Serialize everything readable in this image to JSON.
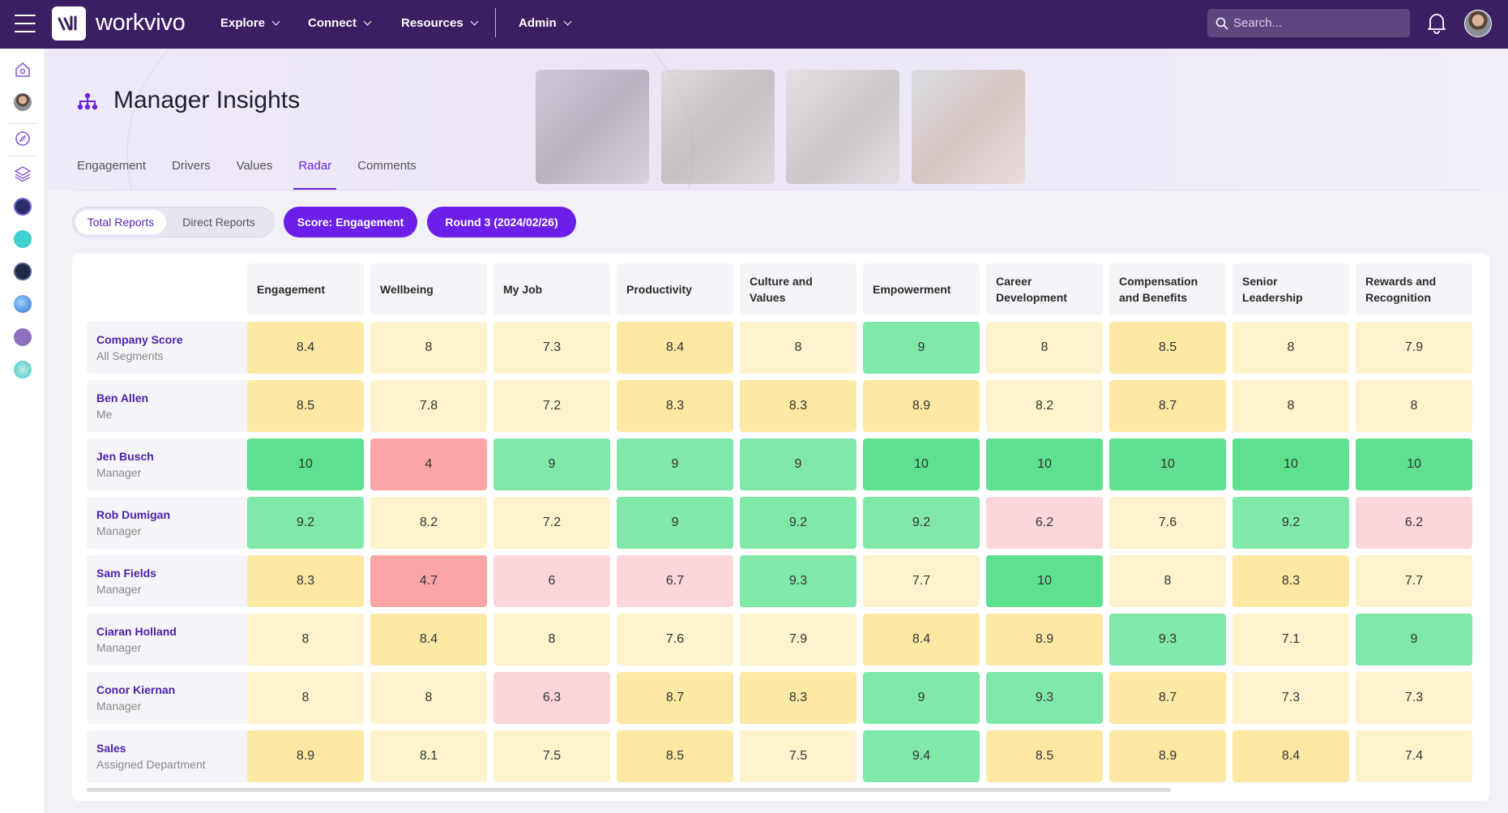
{
  "topbar": {
    "brand": "workvivo",
    "nav": [
      "Explore",
      "Connect",
      "Resources",
      "Admin"
    ],
    "search_placeholder": "Search..."
  },
  "page": {
    "title": "Manager Insights",
    "tabs": [
      "Engagement",
      "Drivers",
      "Values",
      "Radar",
      "Comments"
    ],
    "active_tab": "Radar"
  },
  "filters": {
    "total_reports": "Total Reports",
    "direct_reports": "Direct Reports",
    "score": "Score: Engagement",
    "round": "Round 3 (2024/02/26)"
  },
  "colors": {
    "green_dark": "#5ee08f",
    "green": "#80e8a8",
    "yellow": "#fde9a3",
    "cream": "#fef3cc",
    "pink_light": "#fcd6d8",
    "red": "#fba5a6"
  },
  "table": {
    "columns": [
      [
        "Engagement"
      ],
      [
        "Wellbeing"
      ],
      [
        "My Job"
      ],
      [
        "Productivity"
      ],
      [
        "Culture and",
        "Values"
      ],
      [
        "Empowerment"
      ],
      [
        "Career",
        "Development"
      ],
      [
        "Compensation",
        "and Benefits"
      ],
      [
        "Senior",
        "Leadership"
      ],
      [
        "Rewards and",
        "Recognition"
      ]
    ],
    "rows": [
      {
        "name": "Company Score",
        "role": "All Segments",
        "values": [
          "8.4",
          "8",
          "7.3",
          "8.4",
          "8",
          "9",
          "8",
          "8.5",
          "8",
          "7.9"
        ],
        "tones": [
          "yellow",
          "cream",
          "cream",
          "yellow",
          "cream",
          "green",
          "cream",
          "yellow",
          "cream",
          "cream"
        ]
      },
      {
        "name": "Ben Allen",
        "role": "Me",
        "values": [
          "8.5",
          "7.8",
          "7.2",
          "8.3",
          "8.3",
          "8.9",
          "8.2",
          "8.7",
          "8",
          "8"
        ],
        "tones": [
          "yellow",
          "cream",
          "cream",
          "yellow",
          "yellow",
          "yellow",
          "cream",
          "yellow",
          "cream",
          "cream"
        ]
      },
      {
        "name": "Jen Busch",
        "role": "Manager",
        "values": [
          "10",
          "4",
          "9",
          "9",
          "9",
          "10",
          "10",
          "10",
          "10",
          "10"
        ],
        "tones": [
          "green_dark",
          "red",
          "green",
          "green",
          "green",
          "green_dark",
          "green_dark",
          "green_dark",
          "green_dark",
          "green_dark"
        ]
      },
      {
        "name": "Rob Dumigan",
        "role": "Manager",
        "values": [
          "9.2",
          "8.2",
          "7.2",
          "9",
          "9.2",
          "9.2",
          "6.2",
          "7.6",
          "9.2",
          "6.2"
        ],
        "tones": [
          "green",
          "cream",
          "cream",
          "green",
          "green",
          "green",
          "pink_light",
          "cream",
          "green",
          "pink_light"
        ]
      },
      {
        "name": "Sam Fields",
        "role": "Manager",
        "values": [
          "8.3",
          "4.7",
          "6",
          "6.7",
          "9.3",
          "7.7",
          "10",
          "8",
          "8.3",
          "7.7"
        ],
        "tones": [
          "yellow",
          "red",
          "pink_light",
          "pink_light",
          "green",
          "cream",
          "green_dark",
          "cream",
          "yellow",
          "cream"
        ]
      },
      {
        "name": "Ciaran Holland",
        "role": "Manager",
        "values": [
          "8",
          "8.4",
          "8",
          "7.6",
          "7.9",
          "8.4",
          "8.9",
          "9.3",
          "7.1",
          "9"
        ],
        "tones": [
          "cream",
          "yellow",
          "cream",
          "cream",
          "cream",
          "yellow",
          "yellow",
          "green",
          "cream",
          "green"
        ]
      },
      {
        "name": "Conor Kiernan",
        "role": "Manager",
        "values": [
          "8",
          "8",
          "6.3",
          "8.7",
          "8.3",
          "9",
          "9.3",
          "8.7",
          "7.3",
          "7.3"
        ],
        "tones": [
          "cream",
          "cream",
          "pink_light",
          "yellow",
          "yellow",
          "green",
          "green",
          "yellow",
          "cream",
          "cream"
        ]
      },
      {
        "name": "Sales",
        "role": "Assigned Department",
        "values": [
          "8.9",
          "8.1",
          "7.5",
          "8.5",
          "7.5",
          "9.4",
          "8.5",
          "8.9",
          "8.4",
          "7.4"
        ],
        "tones": [
          "yellow",
          "cream",
          "cream",
          "yellow",
          "cream",
          "green",
          "yellow",
          "yellow",
          "yellow",
          "cream"
        ]
      }
    ]
  }
}
